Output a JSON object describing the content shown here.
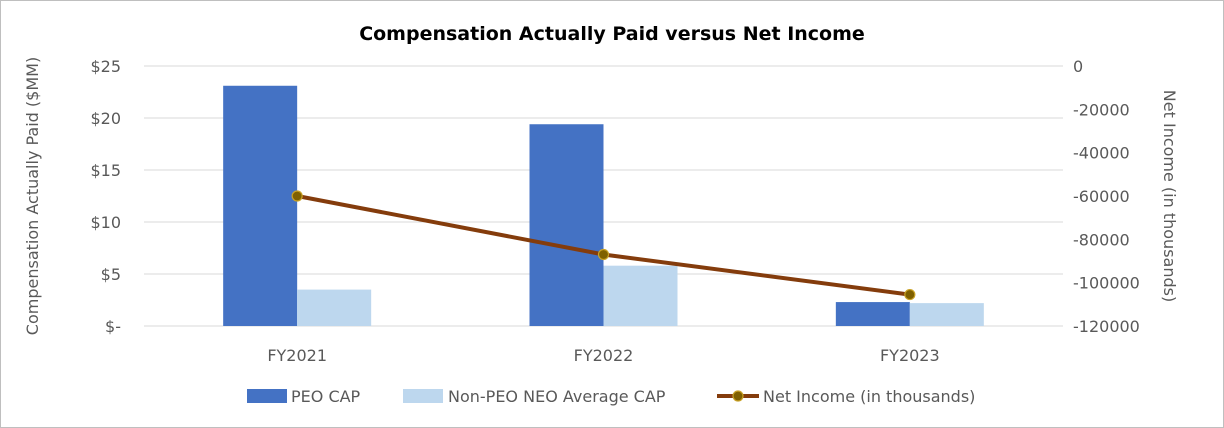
{
  "chart_data": {
    "type": "bar",
    "title": "Compensation  Actually Paid versus Net Income",
    "categories": [
      "FY2021",
      "FY2022",
      "FY2023"
    ],
    "ylabel": "Compensation Actually Paid ($MM)",
    "y2label": "Net Income (in thousands)",
    "ylim": [
      0,
      25
    ],
    "y2lim": [
      -120000,
      0
    ],
    "y_ticks": [
      {
        "value": 25,
        "label": "$25"
      },
      {
        "value": 20,
        "label": "$20"
      },
      {
        "value": 15,
        "label": "$15"
      },
      {
        "value": 10,
        "label": "$10"
      },
      {
        "value": 5,
        "label": "$5"
      },
      {
        "value": 0,
        "label": "$-"
      }
    ],
    "y2_ticks": [
      {
        "value": 0,
        "label": "0"
      },
      {
        "value": -20000,
        "label": "-20000"
      },
      {
        "value": -40000,
        "label": "-40000"
      },
      {
        "value": -60000,
        "label": "-60000"
      },
      {
        "value": -80000,
        "label": "-80000"
      },
      {
        "value": -100000,
        "label": "-100000"
      },
      {
        "value": -120000,
        "label": "-120000"
      }
    ],
    "grid": true,
    "legend_position": "bottom",
    "series": [
      {
        "name": "PEO CAP",
        "kind": "bar",
        "axis": "left",
        "color": "#4472c4",
        "values": [
          23.1,
          19.4,
          2.3
        ]
      },
      {
        "name": "Non-PEO NEO Average CAP",
        "kind": "bar",
        "axis": "left",
        "color": "#bdd7ee",
        "values": [
          3.5,
          5.8,
          2.2
        ]
      },
      {
        "name": "Net Income (in thousands)",
        "kind": "line",
        "axis": "right",
        "color": "#843c0c",
        "marker_color": "#7f6000",
        "values": [
          -60000,
          -87000,
          -105500
        ]
      }
    ]
  }
}
